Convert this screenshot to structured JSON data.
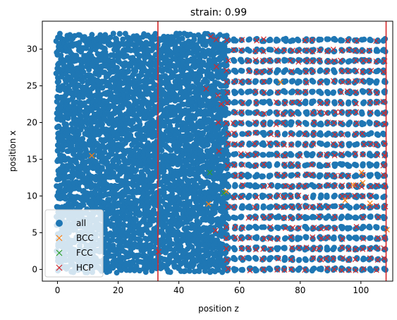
{
  "chart_data": {
    "type": "scatter",
    "title": "strain: 0.99",
    "xlabel": "position z",
    "ylabel": "position x",
    "xlim": [
      -5,
      110.5
    ],
    "ylim": [
      -1.6,
      33.8
    ],
    "xticks": [
      "0",
      "20",
      "40",
      "60",
      "80",
      "100"
    ],
    "yticks": [
      "0",
      "5",
      "10",
      "15",
      "20",
      "25",
      "30"
    ],
    "xtick_values": [
      0,
      20,
      40,
      60,
      80,
      100
    ],
    "ytick_values": [
      0,
      5,
      10,
      15,
      20,
      25,
      30
    ],
    "grid": false,
    "legend_position": "lower-left",
    "vlines": [
      {
        "x": 33.1,
        "color": "#d62728"
      },
      {
        "x": 108.3,
        "color": "#d62728"
      }
    ],
    "series": [
      {
        "name": "all",
        "marker": "circle",
        "color": "#1f77b4",
        "description_regions": {
          "dense_region": {
            "x_range": [
              0,
              56
            ],
            "y_range": [
              0,
              32.3
            ]
          },
          "lattice_region": {
            "x_range": [
              56,
              108
            ],
            "y_range": [
              0,
              32.3
            ],
            "x_spacing": 2.35,
            "y_spacing": 1.42
          }
        }
      },
      {
        "name": "BCC",
        "marker": "x",
        "color": "#ff7f0e",
        "points": [
          [
            11.3,
            15.5
          ],
          [
            73.5,
            25.5
          ],
          [
            49.8,
            8.9
          ],
          [
            55.6,
            10.6
          ],
          [
            100.2,
            13.2
          ],
          [
            100.6,
            11.8
          ],
          [
            94.8,
            9.4
          ],
          [
            103.0,
            9.0
          ],
          [
            108.6,
            5.4
          ],
          [
            97.5,
            11.5
          ]
        ]
      },
      {
        "name": "FCC",
        "marker": "x",
        "color": "#2ca02c",
        "points": [
          [
            50.2,
            13.2
          ],
          [
            54.8,
            10.4
          ]
        ]
      },
      {
        "name": "HCP",
        "marker": "x",
        "color": "#d62728",
        "description_regions": {
          "lattice_region": {
            "x_range": [
              56,
              108
            ],
            "y_range": [
              0,
              32.3
            ]
          }
        },
        "points": [
          [
            33.3,
            2.4
          ],
          [
            49.0,
            24.6
          ],
          [
            50.6,
            31.7
          ],
          [
            52.3,
            31.3
          ],
          [
            52.4,
            27.6
          ],
          [
            52.1,
            5.3
          ],
          [
            52.9,
            23.7
          ],
          [
            53.2,
            16.1
          ],
          [
            54.0,
            22.5
          ],
          [
            53.0,
            20.0
          ]
        ]
      }
    ]
  }
}
